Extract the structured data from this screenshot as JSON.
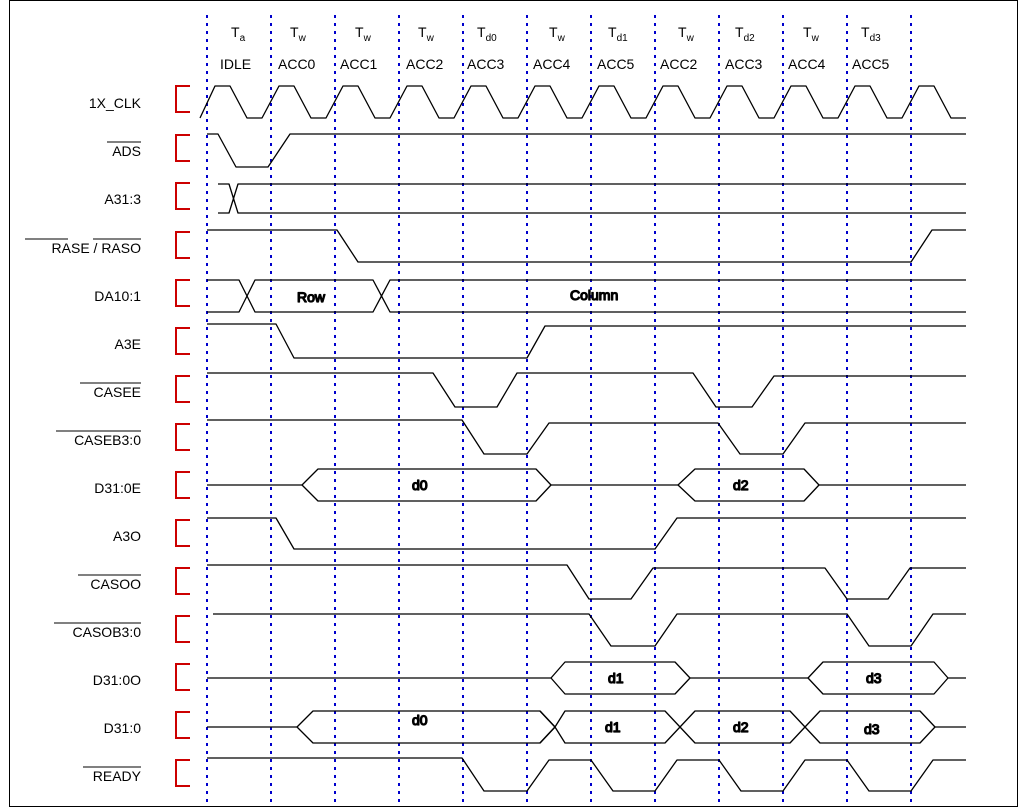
{
  "phases": [
    {
      "state": "T",
      "sub": "a",
      "access": "IDLE"
    },
    {
      "state": "T",
      "sub": "w",
      "access": "ACC0"
    },
    {
      "state": "T",
      "sub": "w",
      "access": "ACC1"
    },
    {
      "state": "T",
      "sub": "w",
      "access": "ACC2"
    },
    {
      "state": "T",
      "sub": "d0",
      "access": "ACC3"
    },
    {
      "state": "T",
      "sub": "w",
      "access": "ACC4"
    },
    {
      "state": "T",
      "sub": "d1",
      "access": "ACC5"
    },
    {
      "state": "T",
      "sub": "w",
      "access": "ACC2"
    },
    {
      "state": "T",
      "sub": "d2",
      "access": "ACC3"
    },
    {
      "state": "T",
      "sub": "w",
      "access": "ACC4"
    },
    {
      "state": "T",
      "sub": "d3",
      "access": "ACC5"
    }
  ],
  "signals": [
    {
      "name": "1X_CLK",
      "overbar": false
    },
    {
      "name": "ADS",
      "overbar": true
    },
    {
      "name": "A31:3",
      "overbar": false
    },
    {
      "name": "RASE / RASO",
      "overbar": true
    },
    {
      "name": "DA10:1",
      "overbar": false
    },
    {
      "name": "A3E",
      "overbar": false
    },
    {
      "name": "CASEE",
      "overbar": true
    },
    {
      "name": "CASEB3:0",
      "overbar": true
    },
    {
      "name": "D31:0E",
      "overbar": false
    },
    {
      "name": "A3O",
      "overbar": false
    },
    {
      "name": "CASOO",
      "overbar": true
    },
    {
      "name": "CASOB3:0",
      "overbar": true
    },
    {
      "name": "D31:0O",
      "overbar": false
    },
    {
      "name": "D31:0",
      "overbar": false
    },
    {
      "name": "READY",
      "overbar": true
    }
  ],
  "bus_labels": {
    "da_row": "Row",
    "da_column": "Column",
    "d0e": "d0",
    "d2e": "d2",
    "d1o": "d1",
    "d3o": "d3",
    "d0": "d0",
    "d1": "d1",
    "d2": "d2",
    "d3": "d3"
  },
  "colors": {
    "grid": "#0000cc",
    "bracket": "#cc0000",
    "wave": "#000000"
  }
}
